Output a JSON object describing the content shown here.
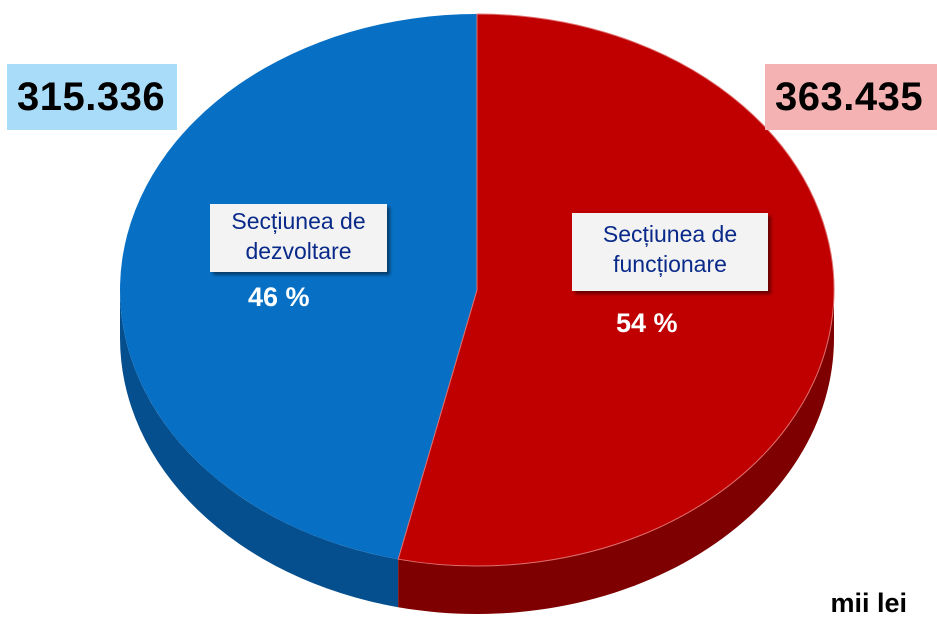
{
  "chart_data": {
    "type": "pie",
    "title": "",
    "unit": "mii lei",
    "slices": [
      {
        "label_line1": "Secțiunea de",
        "label_line2": "dezvoltare",
        "value": 315.336,
        "value_text": "315.336",
        "percent": 46,
        "percent_text": "46 %",
        "color": "#0870c4",
        "side_color": "#064f8e",
        "box_color": "#a9dcf8"
      },
      {
        "label_line1": "Secțiunea de",
        "label_line2": "funcționare",
        "value": 363.435,
        "value_text": "363.435",
        "percent": 54,
        "percent_text": "54 %",
        "color": "#c00000",
        "side_color": "#7e0000",
        "box_color": "#f5b2b2"
      }
    ]
  }
}
